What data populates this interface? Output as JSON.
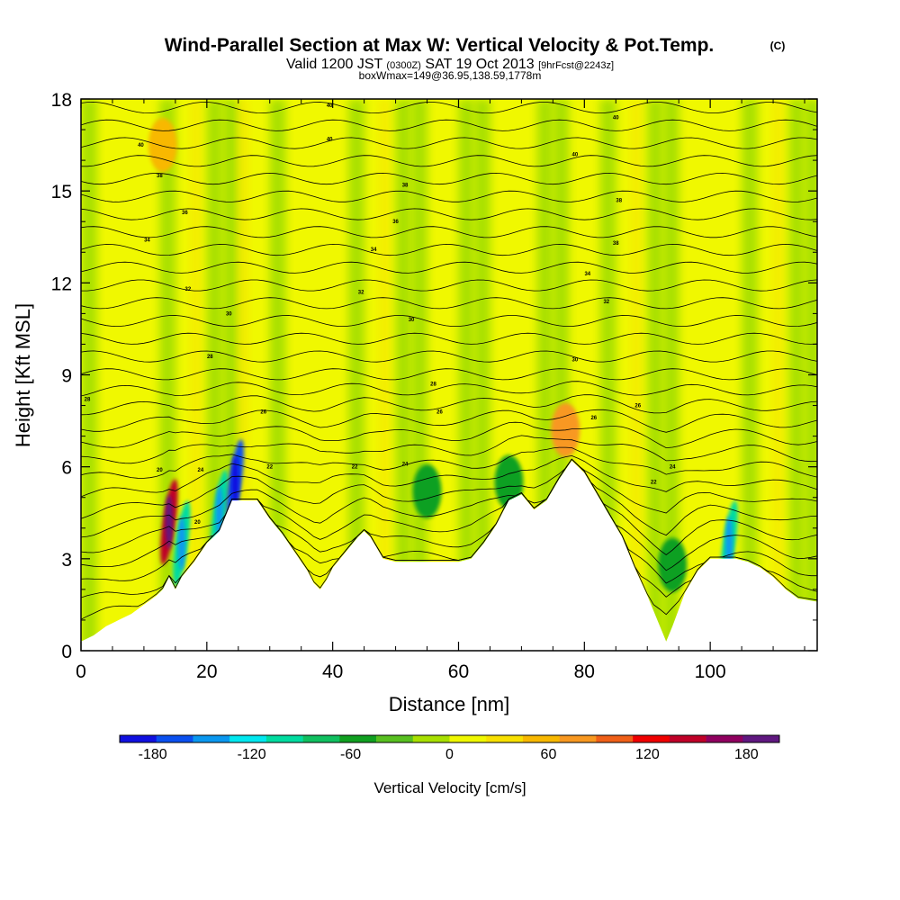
{
  "chart_data": {
    "type": "heatmap",
    "title": "Wind-Parallel Section at Max W: Vertical Velocity & Pot.Temp.",
    "title_mark": "(C)",
    "subtitle_parts": [
      "Valid 1200 JST",
      "(0300Z)",
      "SAT 19 Oct 2013",
      "[9hrFcst@2243z]"
    ],
    "subtitle2": "boxWmax=149@36.95,138.59,1778m",
    "xlabel": "Distance [nm]",
    "ylabel": "Height [Kft MSL]",
    "xlim": [
      0,
      117
    ],
    "ylim": [
      0,
      18
    ],
    "x_ticks": [
      "0",
      "20",
      "40",
      "60",
      "80",
      "100"
    ],
    "y_ticks": [
      "0",
      "3",
      "6",
      "9",
      "12",
      "15",
      "18"
    ],
    "colorbar": {
      "label": "Vertical Velocity [cm/s]",
      "ticks": [
        "-180",
        "-120",
        "-60",
        "0",
        "60",
        "120",
        "180"
      ],
      "bounds": [
        -200,
        200
      ],
      "colors": [
        "#1010e0",
        "#0a50f0",
        "#0a98f0",
        "#00e8f0",
        "#00dca0",
        "#10c060",
        "#10a020",
        "#58c020",
        "#a8e000",
        "#f0f800",
        "#f8e000",
        "#f8b800",
        "#f89820",
        "#f06018",
        "#f00000",
        "#c00028",
        "#900060",
        "#601880"
      ]
    },
    "terrain": {
      "x_nm": [
        0,
        2,
        4,
        6,
        8,
        10,
        12,
        13,
        14,
        15,
        16,
        18,
        20,
        22,
        23,
        24,
        25,
        26,
        28,
        30,
        32,
        34,
        36,
        37,
        38,
        39,
        40,
        42,
        44,
        45,
        46,
        48,
        50,
        52,
        54,
        56,
        58,
        60,
        62,
        64,
        66,
        68,
        70,
        72,
        74,
        76,
        78,
        80,
        82,
        84,
        86,
        88,
        90,
        92,
        93,
        94,
        96,
        98,
        100,
        102,
        104,
        106,
        108,
        110,
        112,
        114,
        117
      ],
      "height_kft": [
        0.3,
        0.5,
        0.8,
        1.0,
        1.2,
        1.5,
        1.8,
        2.0,
        2.4,
        2.0,
        2.4,
        2.9,
        3.5,
        3.9,
        4.4,
        4.9,
        4.9,
        4.9,
        4.9,
        4.3,
        3.8,
        3.2,
        2.6,
        2.2,
        2.0,
        2.3,
        2.7,
        3.2,
        3.7,
        3.9,
        3.7,
        3.0,
        2.9,
        2.9,
        2.9,
        2.9,
        2.9,
        2.9,
        3.0,
        3.5,
        4.1,
        4.9,
        5.1,
        4.6,
        4.9,
        5.6,
        6.2,
        5.8,
        5.1,
        4.4,
        3.7,
        2.7,
        1.8,
        0.8,
        0.3,
        0.8,
        1.9,
        2.6,
        3.0,
        3.0,
        3.0,
        2.9,
        2.7,
        2.4,
        2.0,
        1.7,
        1.6
      ]
    },
    "features": [
      {
        "x": 14,
        "y": 4.2,
        "w": 150
      },
      {
        "x": 16,
        "y": 3.5,
        "w": -100
      },
      {
        "x": 22,
        "y": 4.5,
        "w": -110
      },
      {
        "x": 24.5,
        "y": 5.5,
        "w": -160
      },
      {
        "x": 55,
        "y": 5.2,
        "w": -60
      },
      {
        "x": 68,
        "y": 5.5,
        "w": -60
      },
      {
        "x": 77,
        "y": 7.2,
        "w": 70
      },
      {
        "x": 94,
        "y": 2.8,
        "w": -60
      },
      {
        "x": 103,
        "y": 3.5,
        "w": -100
      },
      {
        "x": 13,
        "y": 16.5,
        "w": 50
      }
    ],
    "contour_labels": [
      {
        "text": "40",
        "x": 9.5,
        "y": 16.5
      },
      {
        "text": "40",
        "x": 39.5,
        "y": 16.7
      },
      {
        "text": "40",
        "x": 78.5,
        "y": 16.2
      },
      {
        "text": "40",
        "x": 85,
        "y": 17.4
      },
      {
        "text": "40",
        "x": 39.5,
        "y": 17.8
      },
      {
        "text": "38",
        "x": 12.5,
        "y": 15.5
      },
      {
        "text": "38",
        "x": 51.5,
        "y": 15.2
      },
      {
        "text": "38",
        "x": 85.5,
        "y": 14.7
      },
      {
        "text": "38",
        "x": 85,
        "y": 13.3
      },
      {
        "text": "36",
        "x": 16.5,
        "y": 14.3
      },
      {
        "text": "36",
        "x": 50,
        "y": 14.0
      },
      {
        "text": "34",
        "x": 10.5,
        "y": 13.4
      },
      {
        "text": "34",
        "x": 46.5,
        "y": 13.1
      },
      {
        "text": "34",
        "x": 80.5,
        "y": 12.3
      },
      {
        "text": "32",
        "x": 17,
        "y": 11.8
      },
      {
        "text": "32",
        "x": 44.5,
        "y": 11.7
      },
      {
        "text": "32",
        "x": 83.5,
        "y": 11.4
      },
      {
        "text": "30",
        "x": 23.5,
        "y": 11.0
      },
      {
        "text": "30",
        "x": 52.5,
        "y": 10.8
      },
      {
        "text": "30",
        "x": 78.5,
        "y": 9.5
      },
      {
        "text": "28",
        "x": 20.5,
        "y": 9.6
      },
      {
        "text": "28",
        "x": 56,
        "y": 8.7
      },
      {
        "text": "28",
        "x": 1,
        "y": 8.2
      },
      {
        "text": "26",
        "x": 29,
        "y": 7.8
      },
      {
        "text": "26",
        "x": 57,
        "y": 7.8
      },
      {
        "text": "26",
        "x": 88.5,
        "y": 8.0
      },
      {
        "text": "26",
        "x": 81.5,
        "y": 7.6
      },
      {
        "text": "24",
        "x": 51.5,
        "y": 6.1
      },
      {
        "text": "24",
        "x": 94,
        "y": 6.0
      },
      {
        "text": "22",
        "x": 30,
        "y": 6.0
      },
      {
        "text": "22",
        "x": 43.5,
        "y": 6.0
      },
      {
        "text": "22",
        "x": 91,
        "y": 5.5
      },
      {
        "text": "24",
        "x": 19,
        "y": 5.9
      },
      {
        "text": "20",
        "x": 12.5,
        "y": 5.9
      },
      {
        "text": "20",
        "x": 18.5,
        "y": 4.2
      }
    ]
  }
}
